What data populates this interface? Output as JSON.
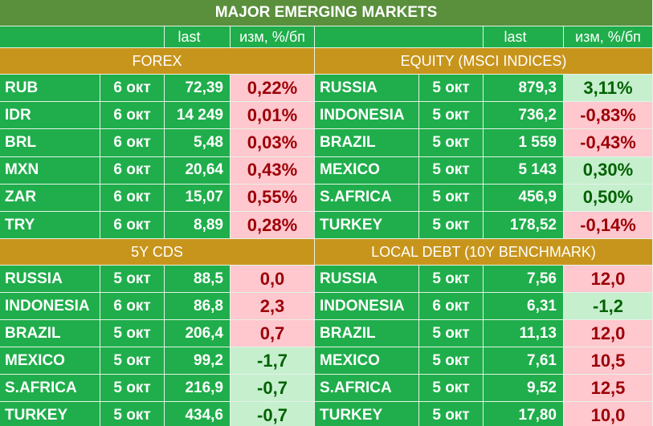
{
  "title": "MAJOR   EMERGING MARKETS",
  "columns": {
    "last": "last",
    "change": "изм, %/бп"
  },
  "sections": [
    {
      "title": "FOREX",
      "rows": [
        {
          "name": "RUB",
          "date": "6 окт",
          "last": "72,39",
          "change": "0,22%",
          "tone": "red"
        },
        {
          "name": "IDR",
          "date": "6 окт",
          "last": "14 249",
          "change": "0,01%",
          "tone": "red"
        },
        {
          "name": "BRL",
          "date": "6 окт",
          "last": "5,48",
          "change": "0,03%",
          "tone": "red"
        },
        {
          "name": "MXN",
          "date": "6 окт",
          "last": "20,64",
          "change": "0,43%",
          "tone": "red"
        },
        {
          "name": "ZAR",
          "date": "6 окт",
          "last": "15,07",
          "change": "0,55%",
          "tone": "red"
        },
        {
          "name": "TRY",
          "date": "6 окт",
          "last": "8,89",
          "change": "0,28%",
          "tone": "red"
        }
      ]
    },
    {
      "title": "EQUITY (MSCI INDICES)",
      "rows": [
        {
          "name": "RUSSIA",
          "date": "5 окт",
          "last": "879,3",
          "change": "3,11%",
          "tone": "green"
        },
        {
          "name": "INDONESIA",
          "date": "5 окт",
          "last": "736,2",
          "change": "-0,83%",
          "tone": "red"
        },
        {
          "name": "BRAZIL",
          "date": "5 окт",
          "last": "1 559",
          "change": "-0,43%",
          "tone": "red"
        },
        {
          "name": "MEXICO",
          "date": "5 окт",
          "last": "5 143",
          "change": "0,30%",
          "tone": "green"
        },
        {
          "name": "S.AFRICA",
          "date": "5 окт",
          "last": "456,9",
          "change": "0,50%",
          "tone": "green"
        },
        {
          "name": "TURKEY",
          "date": "5 окт",
          "last": "178,52",
          "change": "-0,14%",
          "tone": "red"
        }
      ]
    },
    {
      "title": "5Y CDS",
      "rows": [
        {
          "name": "RUSSIA",
          "date": "5 окт",
          "last": "88,5",
          "change": "0,0",
          "tone": "red"
        },
        {
          "name": "INDONESIA",
          "date": "6 окт",
          "last": "86,8",
          "change": "2,3",
          "tone": "red"
        },
        {
          "name": "BRAZIL",
          "date": "5 окт",
          "last": "206,4",
          "change": "0,7",
          "tone": "red"
        },
        {
          "name": "MEXICO",
          "date": "5 окт",
          "last": "99,2",
          "change": "-1,7",
          "tone": "green"
        },
        {
          "name": "S.AFRICA",
          "date": "5 окт",
          "last": "216,9",
          "change": "-0,7",
          "tone": "green"
        },
        {
          "name": "TURKEY",
          "date": "5 окт",
          "last": "434,6",
          "change": "-0,7",
          "tone": "green"
        }
      ]
    },
    {
      "title": "LOCAL DEBT (10Y BENCHMARK)",
      "rows": [
        {
          "name": "RUSSIA",
          "date": "5 окт",
          "last": "7,56",
          "change": "12,0",
          "tone": "red"
        },
        {
          "name": "INDONESIA",
          "date": "6 окт",
          "last": "6,31",
          "change": "-1,2",
          "tone": "green"
        },
        {
          "name": "BRAZIL",
          "date": "5 окт",
          "last": "11,13",
          "change": "12,0",
          "tone": "red"
        },
        {
          "name": "MEXICO",
          "date": "5 окт",
          "last": "7,61",
          "change": "10,5",
          "tone": "red"
        },
        {
          "name": "S.AFRICA",
          "date": "5 окт",
          "last": "9,52",
          "change": "12,5",
          "tone": "red"
        },
        {
          "name": "TURKEY",
          "date": "5 окт",
          "last": "17,80",
          "change": "10,0",
          "tone": "red"
        }
      ]
    }
  ]
}
